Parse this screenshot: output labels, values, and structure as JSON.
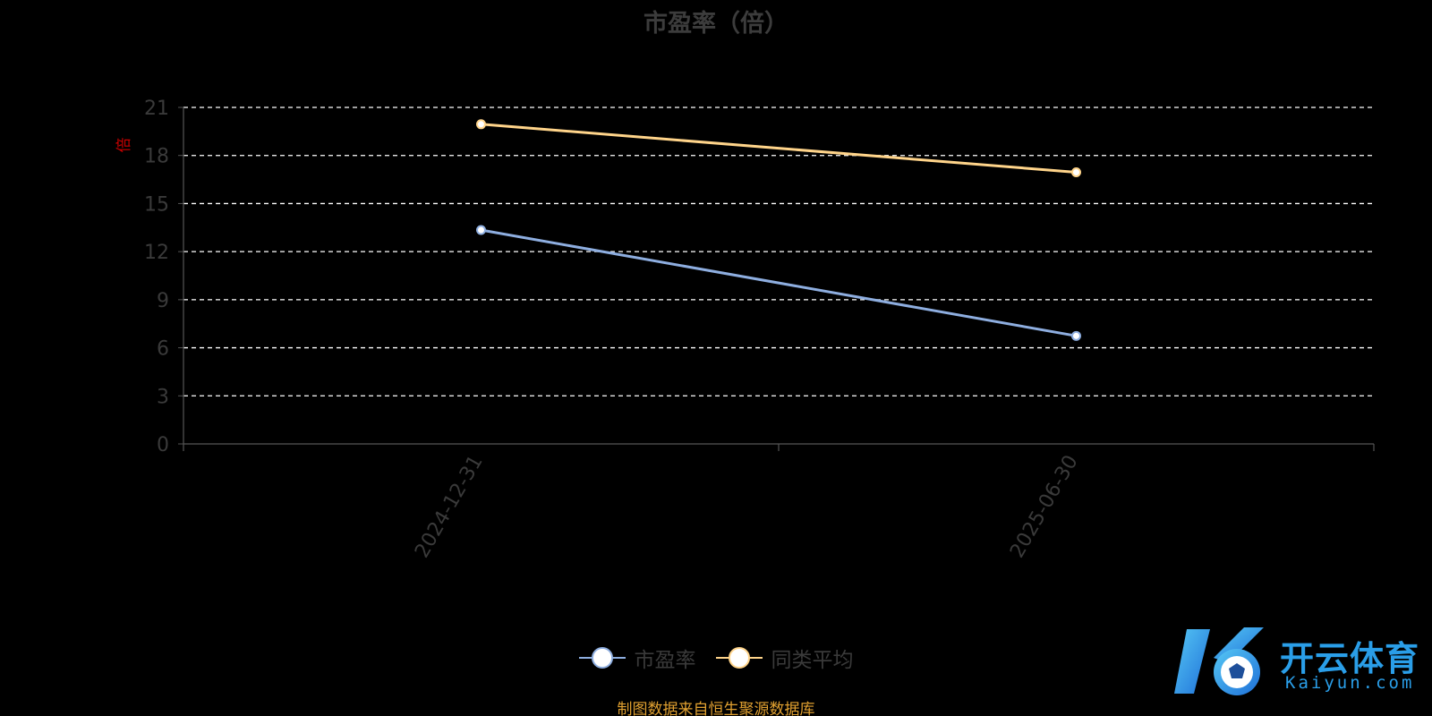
{
  "chart_data": {
    "type": "line",
    "title": "市盈率（倍）",
    "ylabel_rotated": "倍",
    "categories": [
      "2024-12-31",
      "2025-06-30"
    ],
    "yticks": [
      "0",
      "3",
      "6",
      "9",
      "12",
      "15",
      "18",
      "21"
    ],
    "ylim": [
      0,
      21
    ],
    "grid": true,
    "series": [
      {
        "name": "市盈率",
        "values": [
          13.35,
          6.74
        ],
        "color": "#8eaee0"
      },
      {
        "name": "同类平均",
        "values": [
          19.95,
          16.95
        ],
        "color": "#ffd48a"
      }
    ],
    "legend_position": "bottom"
  },
  "source_note": "制图数据来自恒生聚源数据库",
  "logo": {
    "cn": "开云体育",
    "en": "Kaiyun.com"
  },
  "colors": {
    "background": "#000000",
    "grid": "#ffffff",
    "axis": "#555555",
    "tick_text": "#3a3a3a",
    "ylabel": "#cc0000",
    "logo": "#2a9ee8"
  }
}
